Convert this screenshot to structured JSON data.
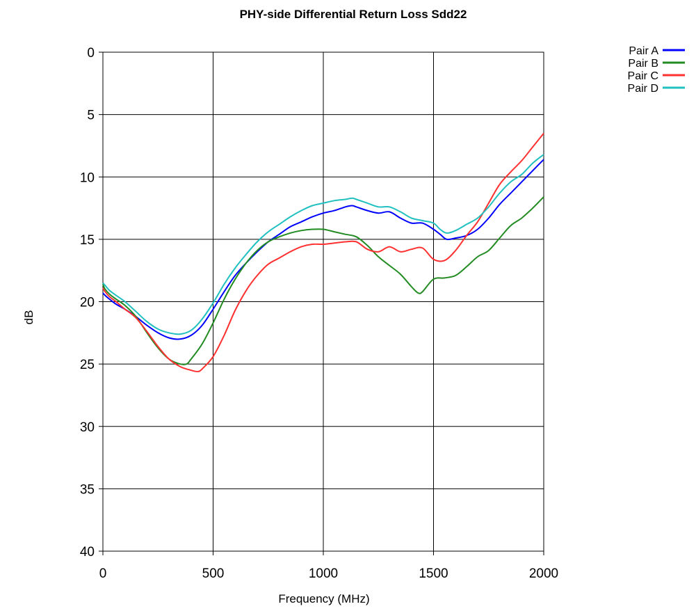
{
  "chart_data": {
    "type": "line",
    "title": "PHY-side Differential Return Loss Sdd22",
    "xlabel": "Frequency (MHz)",
    "ylabel": "dB",
    "xlim": [
      0,
      2000
    ],
    "ylim": [
      0,
      40
    ],
    "y_inverted": true,
    "xticks": [
      0,
      500,
      1000,
      1500,
      2000
    ],
    "yticks": [
      0,
      5,
      10,
      15,
      20,
      25,
      30,
      35,
      40
    ],
    "grid": true,
    "legend_position": "top-right",
    "series": [
      {
        "name": "Pair A",
        "color": "#0000ff",
        "x": [
          0,
          10,
          30,
          60,
          100,
          150,
          200,
          250,
          300,
          350,
          400,
          450,
          500,
          550,
          600,
          650,
          700,
          750,
          800,
          850,
          900,
          950,
          1000,
          1050,
          1100,
          1130,
          1150,
          1200,
          1250,
          1300,
          1350,
          1400,
          1450,
          1500,
          1530,
          1560,
          1600,
          1650,
          1700,
          1750,
          1800,
          1850,
          1900,
          1950,
          2000
        ],
        "y": [
          19.3,
          19.5,
          19.8,
          20.2,
          20.6,
          21.2,
          21.9,
          22.5,
          22.9,
          23.0,
          22.7,
          21.9,
          20.6,
          19.2,
          17.9,
          16.9,
          16.0,
          15.2,
          14.6,
          14.0,
          13.6,
          13.2,
          12.9,
          12.7,
          12.4,
          12.3,
          12.4,
          12.7,
          12.9,
          12.8,
          13.3,
          13.7,
          13.7,
          14.2,
          14.6,
          15.0,
          14.9,
          14.7,
          14.2,
          13.3,
          12.2,
          11.3,
          10.4,
          9.5,
          8.6
        ]
      },
      {
        "name": "Pair B",
        "color": "#228b22",
        "x": [
          0,
          10,
          30,
          60,
          100,
          150,
          200,
          250,
          300,
          350,
          380,
          400,
          450,
          500,
          550,
          600,
          650,
          700,
          750,
          800,
          850,
          900,
          950,
          1000,
          1050,
          1100,
          1150,
          1200,
          1250,
          1300,
          1350,
          1400,
          1430,
          1450,
          1500,
          1550,
          1600,
          1650,
          1700,
          1750,
          1800,
          1850,
          1900,
          1950,
          2000
        ],
        "y": [
          18.6,
          19.0,
          19.4,
          19.8,
          20.3,
          21.2,
          22.5,
          23.7,
          24.6,
          25.0,
          25.0,
          24.6,
          23.4,
          21.7,
          19.8,
          18.2,
          16.9,
          15.9,
          15.2,
          14.8,
          14.5,
          14.3,
          14.2,
          14.2,
          14.4,
          14.6,
          14.8,
          15.5,
          16.4,
          17.1,
          17.8,
          18.8,
          19.3,
          19.2,
          18.2,
          18.1,
          17.9,
          17.2,
          16.4,
          15.9,
          14.9,
          13.9,
          13.3,
          12.5,
          11.6
        ]
      },
      {
        "name": "Pair C",
        "color": "#ff3030",
        "x": [
          0,
          10,
          30,
          60,
          100,
          150,
          200,
          250,
          300,
          350,
          400,
          430,
          450,
          500,
          550,
          600,
          650,
          700,
          750,
          800,
          850,
          900,
          950,
          1000,
          1050,
          1100,
          1150,
          1200,
          1250,
          1300,
          1350,
          1400,
          1450,
          1500,
          1550,
          1600,
          1650,
          1700,
          1750,
          1800,
          1850,
          1900,
          1950,
          2000
        ],
        "y": [
          18.9,
          19.2,
          19.6,
          20.0,
          20.6,
          21.3,
          22.4,
          23.6,
          24.6,
          25.2,
          25.5,
          25.6,
          25.4,
          24.4,
          22.7,
          20.7,
          19.1,
          17.9,
          17.0,
          16.5,
          16.0,
          15.6,
          15.4,
          15.4,
          15.3,
          15.2,
          15.2,
          15.8,
          16.0,
          15.6,
          16.0,
          15.8,
          15.7,
          16.6,
          16.7,
          15.9,
          14.7,
          13.6,
          12.1,
          10.6,
          9.6,
          8.7,
          7.6,
          6.5
        ]
      },
      {
        "name": "Pair D",
        "color": "#20c0c0",
        "x": [
          0,
          10,
          30,
          60,
          100,
          150,
          200,
          250,
          300,
          350,
          400,
          450,
          500,
          550,
          600,
          650,
          700,
          750,
          800,
          850,
          900,
          950,
          1000,
          1050,
          1100,
          1130,
          1150,
          1200,
          1250,
          1300,
          1350,
          1400,
          1450,
          1500,
          1530,
          1560,
          1600,
          1650,
          1700,
          1750,
          1800,
          1850,
          1900,
          1950,
          2000
        ],
        "y": [
          18.5,
          18.7,
          19.1,
          19.5,
          20.0,
          20.8,
          21.6,
          22.2,
          22.5,
          22.6,
          22.3,
          21.4,
          20.1,
          18.6,
          17.3,
          16.2,
          15.2,
          14.4,
          13.8,
          13.2,
          12.7,
          12.3,
          12.1,
          11.9,
          11.8,
          11.7,
          11.8,
          12.1,
          12.4,
          12.4,
          12.8,
          13.3,
          13.5,
          13.7,
          14.2,
          14.5,
          14.3,
          13.8,
          13.3,
          12.4,
          11.3,
          10.4,
          9.8,
          8.9,
          8.2
        ]
      }
    ]
  }
}
